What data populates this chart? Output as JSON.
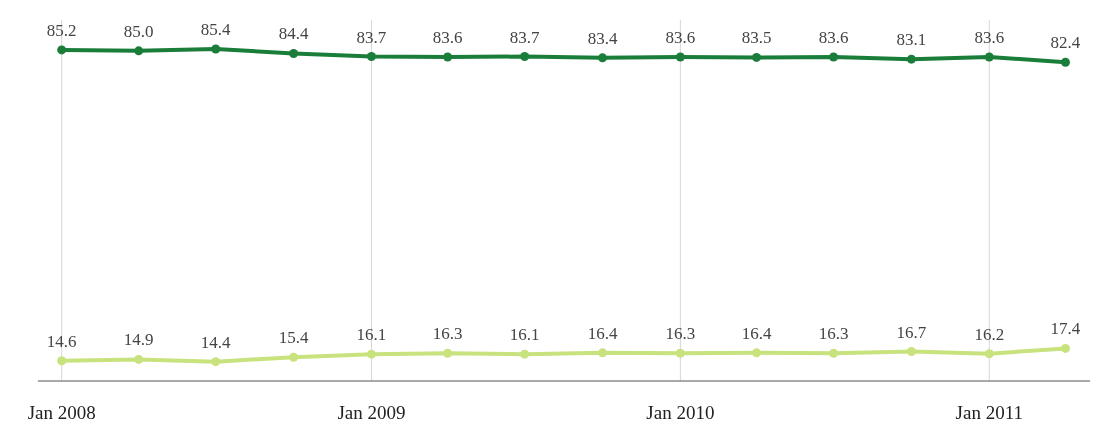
{
  "chart_data": {
    "type": "line",
    "x": [
      "2008-01",
      "2008-04",
      "2008-07",
      "2008-10",
      "2009-01",
      "2009-04",
      "2009-07",
      "2009-10",
      "2010-01",
      "2010-04",
      "2010-07",
      "2010-10",
      "2011-01",
      "2011-04"
    ],
    "series": [
      {
        "color": "#1b7d3a",
        "values": [
          85.2,
          85.0,
          85.4,
          84.4,
          83.7,
          83.6,
          83.7,
          83.4,
          83.6,
          83.5,
          83.6,
          83.1,
          83.6,
          82.4
        ],
        "value_labels": [
          "85.2",
          "85.0",
          "85.4",
          "84.4",
          "83.7",
          "83.6",
          "83.7",
          "83.4",
          "83.6",
          "83.5",
          "83.6",
          "83.1",
          "83.6",
          "82.4"
        ]
      },
      {
        "color": "#c8e27e",
        "values": [
          14.6,
          14.9,
          14.4,
          15.4,
          16.1,
          16.3,
          16.1,
          16.4,
          16.3,
          16.4,
          16.3,
          16.7,
          16.2,
          17.4
        ],
        "value_labels": [
          "14.6",
          "14.9",
          "14.4",
          "15.4",
          "16.1",
          "16.3",
          "16.1",
          "16.4",
          "16.3",
          "16.4",
          "16.3",
          "16.7",
          "16.2",
          "17.4"
        ]
      }
    ],
    "xlim": [
      "2007-12-04",
      "2011-04-30"
    ],
    "xticks": [
      {
        "value": "2008-01-01",
        "label": "Jan 2008"
      },
      {
        "value": "2009-01-01",
        "label": "Jan 2009"
      },
      {
        "value": "2010-01-01",
        "label": "Jan 2010"
      },
      {
        "value": "2011-01-01",
        "label": "Jan 2011"
      }
    ],
    "ylim": [
      10,
      92
    ],
    "tick_labels": "x",
    "grid": "x",
    "marker": "circle",
    "line_style": "solid"
  }
}
